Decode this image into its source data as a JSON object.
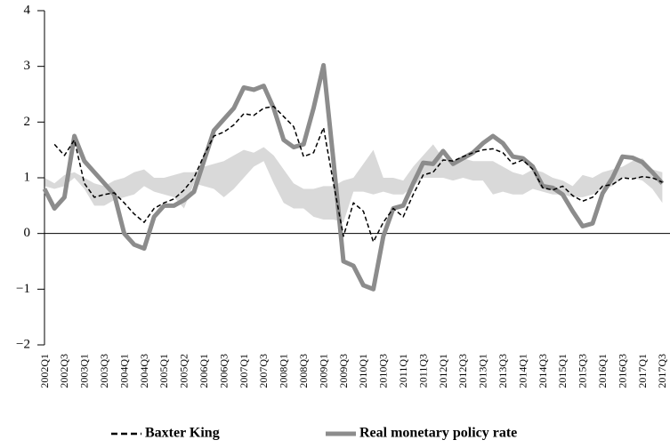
{
  "chart_data": {
    "type": "line",
    "categories": [
      "2002Q1",
      null,
      "2002Q3",
      null,
      "2003Q1",
      null,
      "2003Q3",
      null,
      "2004Q1",
      null,
      "2004Q3",
      null,
      "2005Q1",
      null,
      "2005Q2",
      null,
      "2006Q1",
      null,
      "2006Q3",
      null,
      "2007Q1",
      null,
      "2007Q3",
      null,
      "2008Q1",
      null,
      "2008Q3",
      null,
      "2009Q1",
      null,
      "2009Q3",
      null,
      "2010Q1",
      null,
      "2010Q3",
      null,
      "2011Q1",
      null,
      "2011Q3",
      null,
      "2012Q1",
      null,
      "2012Q3",
      null,
      "2013Q1",
      null,
      "2013Q3",
      null,
      "2014Q1",
      null,
      "2014Q3",
      null,
      "2015Q1",
      null,
      "2015Q3",
      null,
      "2016Q1",
      null,
      "2016Q3",
      null,
      "2017Q1",
      null,
      "2017Q3"
    ],
    "band": {
      "color": "#d9d9d9",
      "lower": [
        0.85,
        0.8,
        0.85,
        1.0,
        0.8,
        0.5,
        0.5,
        0.6,
        0.65,
        0.7,
        0.85,
        0.75,
        0.7,
        0.65,
        0.45,
        0.9,
        0.85,
        0.8,
        0.65,
        0.8,
        1.0,
        1.2,
        1.3,
        0.9,
        0.55,
        0.45,
        0.45,
        0.3,
        0.25,
        0.25,
        0.2,
        0.75,
        0.75,
        0.7,
        0.75,
        0.7,
        0.7,
        0.85,
        1.0,
        1.0,
        1.0,
        0.95,
        1.0,
        0.95,
        0.95,
        0.7,
        0.75,
        0.7,
        0.7,
        0.8,
        0.75,
        0.7,
        0.7,
        0.65,
        0.65,
        0.7,
        0.8,
        0.85,
        1.0,
        1.0,
        0.95,
        0.8,
        0.55
      ],
      "upper": [
        1.0,
        0.9,
        1.05,
        1.1,
        1.0,
        0.9,
        0.85,
        0.95,
        1.0,
        1.1,
        1.15,
        1.0,
        1.0,
        1.05,
        1.1,
        1.1,
        1.2,
        1.25,
        1.3,
        1.4,
        1.5,
        1.45,
        1.55,
        1.4,
        1.15,
        0.9,
        0.8,
        0.8,
        0.85,
        0.85,
        0.95,
        1.0,
        1.25,
        1.5,
        1.0,
        1.0,
        0.95,
        1.2,
        1.4,
        1.6,
        1.35,
        1.3,
        1.35,
        1.3,
        1.3,
        1.3,
        1.2,
        1.1,
        1.05,
        1.15,
        1.1,
        1.0,
        0.95,
        0.85,
        1.05,
        1.0,
        1.1,
        1.15,
        1.2,
        1.3,
        1.35,
        1.15,
        1.1
      ]
    },
    "series": [
      {
        "name": "Real monetary policy rate",
        "color": "#8c8c8c",
        "width": 5,
        "dashed": false,
        "values": [
          0.8,
          0.45,
          0.65,
          1.75,
          1.3,
          1.1,
          0.9,
          0.7,
          0.0,
          -0.2,
          -0.27,
          0.3,
          0.5,
          0.5,
          0.6,
          0.75,
          1.3,
          1.85,
          2.05,
          2.25,
          2.62,
          2.58,
          2.65,
          2.25,
          1.68,
          1.55,
          1.6,
          2.25,
          3.02,
          1.3,
          -0.5,
          -0.58,
          -0.93,
          -1.0,
          -0.05,
          0.45,
          0.5,
          0.9,
          1.27,
          1.25,
          1.48,
          1.25,
          1.35,
          1.45,
          1.62,
          1.75,
          1.62,
          1.38,
          1.35,
          1.2,
          0.85,
          0.82,
          0.7,
          0.4,
          0.13,
          0.18,
          0.72,
          1.0,
          1.38,
          1.36,
          1.28,
          1.1,
          0.9
        ]
      },
      {
        "name": "Baxter King",
        "color": "#000000",
        "width": 1.5,
        "dashed": true,
        "values": [
          null,
          1.6,
          1.4,
          1.68,
          0.9,
          0.65,
          0.7,
          0.73,
          0.55,
          0.35,
          0.2,
          0.45,
          0.55,
          0.62,
          0.78,
          1.0,
          1.4,
          1.75,
          1.82,
          1.95,
          2.15,
          2.12,
          2.25,
          2.28,
          2.1,
          1.92,
          1.38,
          1.45,
          1.9,
          0.9,
          -0.05,
          0.55,
          0.4,
          -0.15,
          0.2,
          0.45,
          0.3,
          0.7,
          1.05,
          1.1,
          1.32,
          1.3,
          1.38,
          1.45,
          1.5,
          1.52,
          1.45,
          1.25,
          1.32,
          1.15,
          0.82,
          0.78,
          0.85,
          0.68,
          0.58,
          0.65,
          0.85,
          0.88,
          1.0,
          0.98,
          1.02,
          1.0,
          0.92
        ]
      }
    ],
    "ylim": [
      -2,
      4
    ],
    "yticks": [
      {
        "value": -2,
        "label": "−2"
      },
      {
        "value": -1,
        "label": "−1"
      },
      0,
      1,
      2,
      3,
      4
    ],
    "legend": "bottom"
  }
}
